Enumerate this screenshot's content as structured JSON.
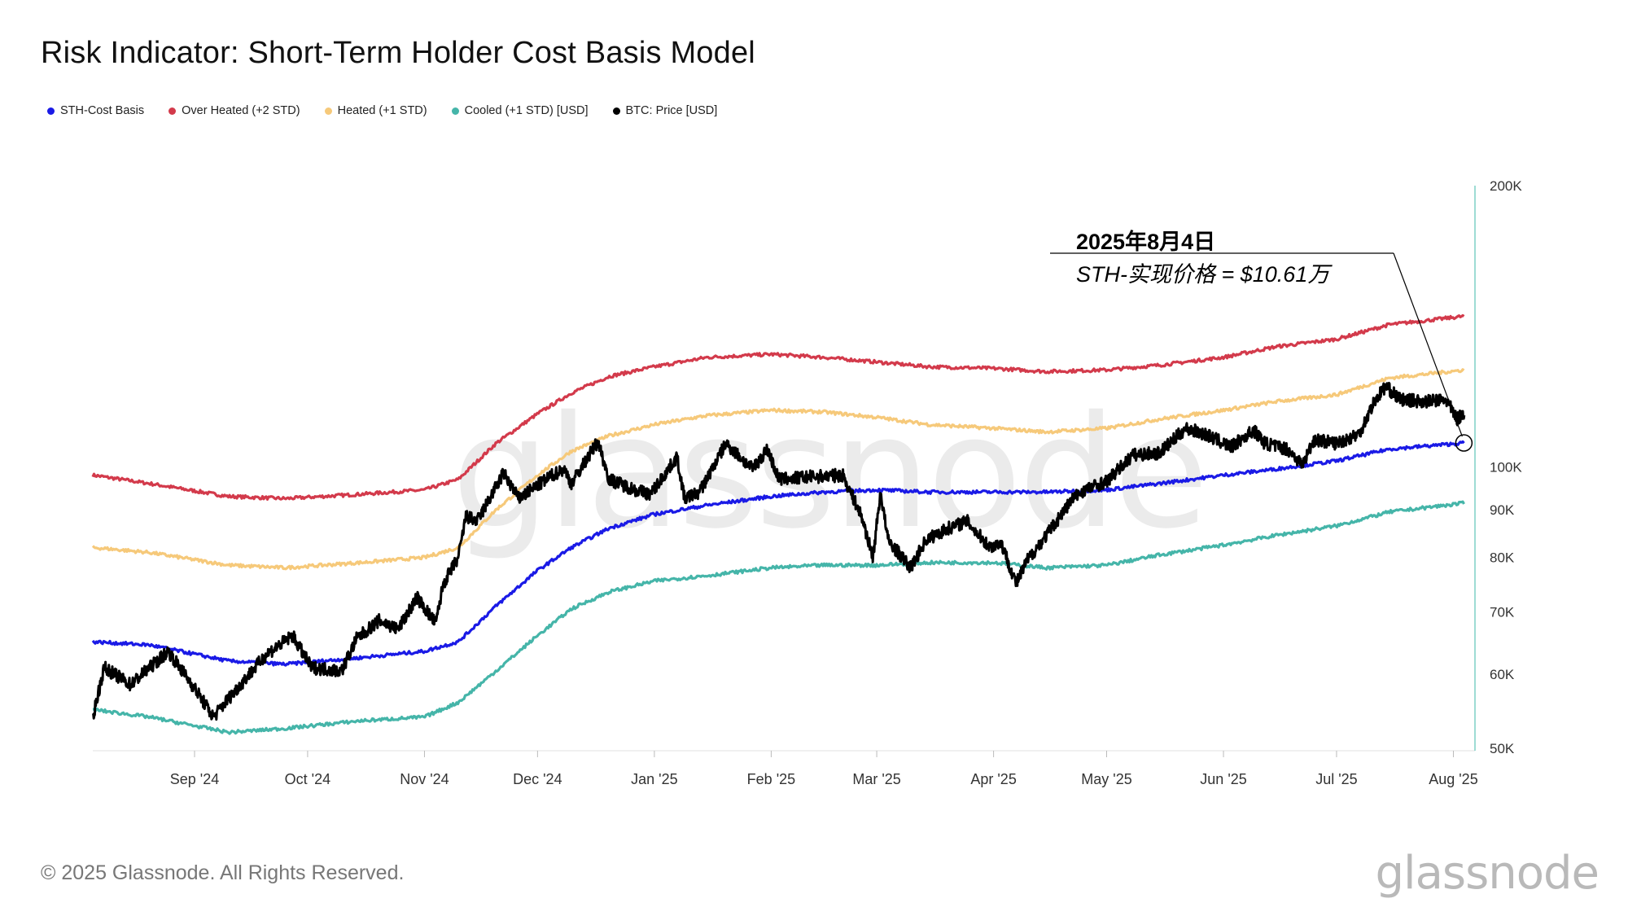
{
  "title": "Risk Indicator: Short-Term Holder Cost Basis Model",
  "legend": [
    {
      "label": "STH-Cost Basis",
      "color": "#1a1ae6"
    },
    {
      "label": "Over Heated (+2 STD)",
      "color": "#d33a4b"
    },
    {
      "label": "Heated (+1 STD)",
      "color": "#f6c97a"
    },
    {
      "label": "Cooled (+1 STD) [USD]",
      "color": "#45b5a9"
    },
    {
      "label": "BTC: Price [USD]",
      "color": "#000000"
    }
  ],
  "annotation": {
    "date": "2025年8月4日",
    "value": "STH-实现价格 = $10.61万"
  },
  "footer": "© 2025 Glassnode. All Rights Reserved.",
  "logo": "glassnode",
  "watermark": "glassnode",
  "chart_data": {
    "type": "line",
    "y_scale": "log",
    "ylim": [
      50000,
      200000
    ],
    "y_ticks": [
      {
        "value": 50000,
        "label": "50K"
      },
      {
        "value": 60000,
        "label": "60K"
      },
      {
        "value": 70000,
        "label": "70K"
      },
      {
        "value": 80000,
        "label": "80K"
      },
      {
        "value": 90000,
        "label": "90K"
      },
      {
        "value": 100000,
        "label": "100K"
      },
      {
        "value": 200000,
        "label": "200K"
      }
    ],
    "x_range": [
      "2024-08-05",
      "2025-08-05"
    ],
    "x_ticks": [
      {
        "date": "2024-09-01",
        "label": "Sep '24"
      },
      {
        "date": "2024-10-01",
        "label": "Oct '24"
      },
      {
        "date": "2024-11-01",
        "label": "Nov '24"
      },
      {
        "date": "2024-12-01",
        "label": "Dec '24"
      },
      {
        "date": "2025-01-01",
        "label": "Jan '25"
      },
      {
        "date": "2025-02-01",
        "label": "Feb '25"
      },
      {
        "date": "2025-03-01",
        "label": "Mar '25"
      },
      {
        "date": "2025-04-01",
        "label": "Apr '25"
      },
      {
        "date": "2025-05-01",
        "label": "May '25"
      },
      {
        "date": "2025-06-01",
        "label": "Jun '25"
      },
      {
        "date": "2025-07-01",
        "label": "Jul '25"
      },
      {
        "date": "2025-08-01",
        "label": "Aug '25"
      }
    ],
    "highlight_point": {
      "date": "2025-08-04",
      "value": 106100
    },
    "series": [
      {
        "name": "Over Heated (+2 STD)",
        "color": "#d33a4b",
        "points": [
          [
            "2024-08-05",
            98000
          ],
          [
            "2024-08-20",
            96000
          ],
          [
            "2024-09-10",
            93000
          ],
          [
            "2024-09-25",
            92500
          ],
          [
            "2024-10-15",
            93500
          ],
          [
            "2024-11-01",
            94500
          ],
          [
            "2024-11-10",
            97000
          ],
          [
            "2024-11-20",
            106000
          ],
          [
            "2024-12-01",
            114000
          ],
          [
            "2024-12-10",
            120000
          ],
          [
            "2024-12-20",
            125000
          ],
          [
            "2025-01-01",
            128000
          ],
          [
            "2025-01-15",
            131000
          ],
          [
            "2025-02-01",
            132000
          ],
          [
            "2025-02-15",
            131000
          ],
          [
            "2025-03-01",
            129500
          ],
          [
            "2025-03-15",
            128000
          ],
          [
            "2025-04-01",
            127500
          ],
          [
            "2025-04-15",
            126500
          ],
          [
            "2025-05-01",
            127000
          ],
          [
            "2025-05-15",
            128500
          ],
          [
            "2025-06-01",
            131000
          ],
          [
            "2025-06-15",
            134500
          ],
          [
            "2025-07-01",
            137000
          ],
          [
            "2025-07-15",
            142000
          ],
          [
            "2025-08-04",
            145000
          ]
        ]
      },
      {
        "name": "Heated (+1 STD)",
        "color": "#f6c97a",
        "points": [
          [
            "2024-08-05",
            82000
          ],
          [
            "2024-08-20",
            81000
          ],
          [
            "2024-09-10",
            78500
          ],
          [
            "2024-09-25",
            78000
          ],
          [
            "2024-10-15",
            79000
          ],
          [
            "2024-11-01",
            80000
          ],
          [
            "2024-11-10",
            82000
          ],
          [
            "2024-11-20",
            90000
          ],
          [
            "2024-12-01",
            98000
          ],
          [
            "2024-12-10",
            104000
          ],
          [
            "2024-12-20",
            108000
          ],
          [
            "2025-01-01",
            111000
          ],
          [
            "2025-01-15",
            113500
          ],
          [
            "2025-02-01",
            115000
          ],
          [
            "2025-02-15",
            114500
          ],
          [
            "2025-03-01",
            113000
          ],
          [
            "2025-03-15",
            111000
          ],
          [
            "2025-04-01",
            110000
          ],
          [
            "2025-04-15",
            109000
          ],
          [
            "2025-05-01",
            110000
          ],
          [
            "2025-05-15",
            112500
          ],
          [
            "2025-06-01",
            115000
          ],
          [
            "2025-06-15",
            117500
          ],
          [
            "2025-07-01",
            119500
          ],
          [
            "2025-07-15",
            124500
          ],
          [
            "2025-08-04",
            127000
          ]
        ]
      },
      {
        "name": "STH-Cost Basis",
        "color": "#1a1ae6",
        "points": [
          [
            "2024-08-05",
            65000
          ],
          [
            "2024-08-20",
            64500
          ],
          [
            "2024-09-10",
            62000
          ],
          [
            "2024-09-25",
            61500
          ],
          [
            "2024-10-15",
            62500
          ],
          [
            "2024-11-01",
            63500
          ],
          [
            "2024-11-10",
            65000
          ],
          [
            "2024-11-20",
            71000
          ],
          [
            "2024-12-01",
            77500
          ],
          [
            "2024-12-10",
            82000
          ],
          [
            "2024-12-20",
            86000
          ],
          [
            "2025-01-01",
            89000
          ],
          [
            "2025-01-15",
            91000
          ],
          [
            "2025-02-01",
            93000
          ],
          [
            "2025-02-15",
            94000
          ],
          [
            "2025-03-01",
            94500
          ],
          [
            "2025-03-15",
            94000
          ],
          [
            "2025-04-01",
            94000
          ],
          [
            "2025-04-15",
            94000
          ],
          [
            "2025-05-01",
            94500
          ],
          [
            "2025-05-15",
            96000
          ],
          [
            "2025-06-01",
            98000
          ],
          [
            "2025-06-15",
            99500
          ],
          [
            "2025-07-01",
            101500
          ],
          [
            "2025-07-15",
            104500
          ],
          [
            "2025-08-04",
            106100
          ]
        ]
      },
      {
        "name": "Cooled (+1 STD) [USD]",
        "color": "#45b5a9",
        "points": [
          [
            "2024-08-05",
            55000
          ],
          [
            "2024-08-20",
            54000
          ],
          [
            "2024-09-10",
            52000
          ],
          [
            "2024-09-25",
            52500
          ],
          [
            "2024-10-15",
            53500
          ],
          [
            "2024-11-01",
            54000
          ],
          [
            "2024-11-10",
            56000
          ],
          [
            "2024-11-20",
            60500
          ],
          [
            "2024-12-01",
            66000
          ],
          [
            "2024-12-10",
            70500
          ],
          [
            "2024-12-20",
            73500
          ],
          [
            "2025-01-01",
            75500
          ],
          [
            "2025-01-15",
            76500
          ],
          [
            "2025-02-01",
            78000
          ],
          [
            "2025-02-15",
            78500
          ],
          [
            "2025-03-01",
            78500
          ],
          [
            "2025-03-15",
            79000
          ],
          [
            "2025-04-01",
            79000
          ],
          [
            "2025-04-15",
            78000
          ],
          [
            "2025-05-01",
            78500
          ],
          [
            "2025-05-15",
            80500
          ],
          [
            "2025-06-01",
            82500
          ],
          [
            "2025-06-15",
            84500
          ],
          [
            "2025-07-01",
            86500
          ],
          [
            "2025-07-15",
            89500
          ],
          [
            "2025-08-04",
            91500
          ]
        ]
      },
      {
        "name": "BTC: Price [USD]",
        "color": "#000000",
        "points": [
          [
            "2024-08-05",
            54000
          ],
          [
            "2024-08-08",
            61000
          ],
          [
            "2024-08-15",
            58500
          ],
          [
            "2024-08-25",
            63500
          ],
          [
            "2024-09-01",
            58000
          ],
          [
            "2024-09-06",
            54000
          ],
          [
            "2024-09-10",
            56500
          ],
          [
            "2024-09-20",
            63000
          ],
          [
            "2024-09-27",
            66000
          ],
          [
            "2024-10-02",
            61000
          ],
          [
            "2024-10-10",
            60500
          ],
          [
            "2024-10-14",
            65500
          ],
          [
            "2024-10-20",
            68500
          ],
          [
            "2024-10-25",
            67000
          ],
          [
            "2024-10-30",
            72500
          ],
          [
            "2024-11-04",
            68000
          ],
          [
            "2024-11-06",
            75000
          ],
          [
            "2024-11-10",
            80000
          ],
          [
            "2024-11-12",
            88500
          ],
          [
            "2024-11-15",
            87500
          ],
          [
            "2024-11-22",
            98500
          ],
          [
            "2024-11-26",
            92500
          ],
          [
            "2024-12-05",
            98000
          ],
          [
            "2024-12-08",
            99500
          ],
          [
            "2024-12-10",
            96000
          ],
          [
            "2024-12-17",
            106500
          ],
          [
            "2024-12-20",
            97000
          ],
          [
            "2024-12-27",
            94500
          ],
          [
            "2024-12-31",
            93500
          ],
          [
            "2025-01-07",
            102500
          ],
          [
            "2025-01-09",
            92500
          ],
          [
            "2025-01-13",
            94000
          ],
          [
            "2025-01-20",
            106000
          ],
          [
            "2025-01-27",
            99500
          ],
          [
            "2025-01-31",
            104500
          ],
          [
            "2025-02-03",
            97000
          ],
          [
            "2025-02-10",
            97500
          ],
          [
            "2025-02-20",
            98000
          ],
          [
            "2025-02-25",
            88500
          ],
          [
            "2025-02-28",
            80000
          ],
          [
            "2025-03-02",
            94000
          ],
          [
            "2025-03-04",
            83500
          ],
          [
            "2025-03-10",
            78000
          ],
          [
            "2025-03-14",
            83500
          ],
          [
            "2025-03-20",
            86000
          ],
          [
            "2025-03-25",
            87500
          ],
          [
            "2025-03-31",
            82000
          ],
          [
            "2025-04-03",
            83000
          ],
          [
            "2025-04-07",
            75000
          ],
          [
            "2025-04-10",
            79500
          ],
          [
            "2025-04-15",
            84500
          ],
          [
            "2025-04-22",
            92500
          ],
          [
            "2025-04-25",
            94500
          ],
          [
            "2025-05-01",
            96500
          ],
          [
            "2025-05-08",
            103000
          ],
          [
            "2025-05-15",
            103500
          ],
          [
            "2025-05-22",
            110000
          ],
          [
            "2025-05-27",
            108500
          ],
          [
            "2025-06-03",
            105000
          ],
          [
            "2025-06-09",
            109500
          ],
          [
            "2025-06-12",
            106000
          ],
          [
            "2025-06-18",
            104500
          ],
          [
            "2025-06-22",
            100500
          ],
          [
            "2025-06-25",
            107000
          ],
          [
            "2025-07-01",
            106000
          ],
          [
            "2025-07-07",
            108500
          ],
          [
            "2025-07-11",
            117500
          ],
          [
            "2025-07-14",
            122000
          ],
          [
            "2025-07-18",
            118000
          ],
          [
            "2025-07-25",
            117500
          ],
          [
            "2025-07-30",
            118000
          ],
          [
            "2025-08-02",
            112500
          ],
          [
            "2025-08-04",
            114500
          ]
        ]
      }
    ]
  }
}
